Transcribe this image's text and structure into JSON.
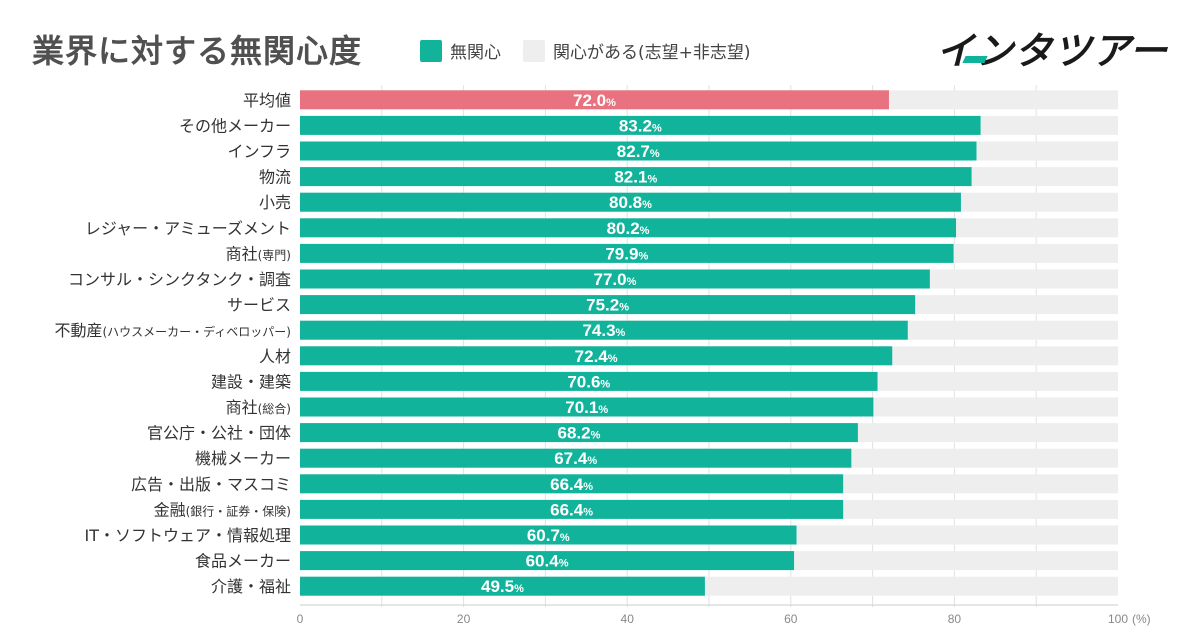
{
  "header": {
    "title": "業界に対する無関心度",
    "legend": [
      {
        "label": "無関心",
        "color": "#12b39b"
      },
      {
        "label": "関心がある(志望+非志望)",
        "color": "#eeeeee"
      }
    ],
    "logo": "インタツアー"
  },
  "chart_data": {
    "type": "bar",
    "orientation": "horizontal",
    "stacked_to": 100,
    "categories": [
      "平均値",
      "その他メーカー",
      "インフラ",
      "物流",
      "小売",
      "レジャー・アミューズメント",
      "商社(専門)",
      "コンサル・シンクタンク・調査",
      "サービス",
      "不動産(ハウスメーカー・ディベロッパー)",
      "人材",
      "建設・建築",
      "商社(総合)",
      "官公庁・公社・団体",
      "機械メーカー",
      "広告・出版・マスコミ",
      "金融(銀行・証券・保険)",
      "IT・ソフトウェア・情報処理",
      "食品メーカー",
      "介護・福祉"
    ],
    "category_labels": [
      {
        "main": "平均値"
      },
      {
        "main": "その他メーカー"
      },
      {
        "main": "インフラ"
      },
      {
        "main": "物流"
      },
      {
        "main": "小売"
      },
      {
        "main": "レジャー・アミューズメント"
      },
      {
        "main": "商社",
        "sub": "(専門)"
      },
      {
        "main": "コンサル・シンクタンク・調査"
      },
      {
        "main": "サービス"
      },
      {
        "main": "不動産",
        "sub": "(ハウスメーカー・ディベロッパー)"
      },
      {
        "main": "人材"
      },
      {
        "main": "建設・建築"
      },
      {
        "main": "商社",
        "sub": "(総合)"
      },
      {
        "main": "官公庁・公社・団体"
      },
      {
        "main": "機械メーカー"
      },
      {
        "main": "広告・出版・マスコミ"
      },
      {
        "main": "金融",
        "sub": "(銀行・証券・保険)"
      },
      {
        "main": "IT・ソフトウェア・情報処理"
      },
      {
        "main": "食品メーカー"
      },
      {
        "main": "介護・福祉"
      }
    ],
    "series": [
      {
        "name": "無関心",
        "color": "#12b39b",
        "highlight_color": "#e8727f",
        "values": [
          72.0,
          83.2,
          82.7,
          82.1,
          80.8,
          80.2,
          79.9,
          77.0,
          75.2,
          74.3,
          72.4,
          70.6,
          70.1,
          68.2,
          67.4,
          66.4,
          66.4,
          60.7,
          60.4,
          49.5
        ]
      },
      {
        "name": "関心がある(志望+非志望)",
        "color": "#eeeeee"
      }
    ],
    "highlight_index": 0,
    "value_suffix": "%",
    "xlim": [
      0,
      100
    ],
    "xticks": [
      0,
      20,
      40,
      60,
      80,
      100
    ],
    "x_unit": "(%)",
    "grid": true,
    "legend_position": "top"
  }
}
